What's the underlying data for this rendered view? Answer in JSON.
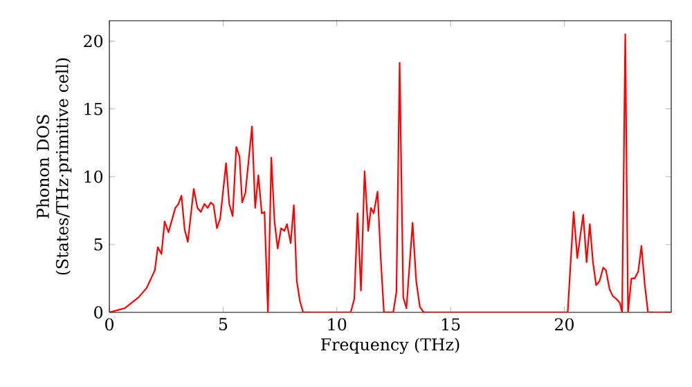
{
  "chart_data": {
    "type": "line",
    "xlabel": "Frequency (THz)",
    "ylabel": "Phonon DOS (States/THz·primitive cell)",
    "color": "#ff0000",
    "x": [
      0,
      0.67,
      1.28,
      1.64,
      2.0,
      2.13,
      2.29,
      2.43,
      2.6,
      2.9,
      3.04,
      3.17,
      3.31,
      3.45,
      3.71,
      3.87,
      4.02,
      4.18,
      4.32,
      4.46,
      4.58,
      4.73,
      4.87,
      5.13,
      5.27,
      5.42,
      5.58,
      5.72,
      5.84,
      5.98,
      6.27,
      6.41,
      6.55,
      6.7,
      6.82,
      6.97,
      7.12,
      7.26,
      7.4,
      7.55,
      7.69,
      7.81,
      7.97,
      8.11,
      8.24,
      8.38,
      8.52,
      10.61,
      10.77,
      10.91,
      11.06,
      11.22,
      11.38,
      11.5,
      11.62,
      11.79,
      11.93,
      12.07,
      12.48,
      12.62,
      12.76,
      12.92,
      13.06,
      13.33,
      13.49,
      13.65,
      13.82,
      20.15,
      20.24,
      20.41,
      20.57,
      20.83,
      20.98,
      21.12,
      21.26,
      21.4,
      21.55,
      21.71,
      21.83,
      21.99,
      22.13,
      22.28,
      22.44,
      22.54,
      22.68,
      22.8,
      22.95,
      23.09,
      23.25,
      23.39,
      23.54,
      23.68,
      24.7
    ],
    "values": [
      0,
      0.3,
      1.1,
      1.8,
      3.1,
      4.8,
      4.3,
      6.7,
      5.9,
      7.7,
      8.0,
      8.6,
      6.1,
      5.2,
      9.1,
      7.7,
      7.4,
      8.0,
      7.7,
      8.1,
      7.9,
      6.2,
      6.9,
      11.0,
      8.0,
      7.1,
      12.2,
      11.5,
      8.1,
      8.8,
      13.7,
      7.7,
      10.1,
      7.3,
      7.4,
      0,
      11.4,
      6.7,
      4.7,
      6.2,
      6.0,
      6.5,
      5.1,
      7.9,
      2.3,
      0.8,
      0,
      0,
      1.0,
      7.3,
      1.6,
      10.4,
      6.0,
      7.7,
      7.3,
      8.9,
      4.0,
      0,
      0,
      1.5,
      18.4,
      1.1,
      0.3,
      6.6,
      2.3,
      0.4,
      0,
      0,
      2.6,
      7.4,
      4.0,
      7.2,
      3.7,
      6.5,
      3.7,
      2.0,
      2.3,
      3.3,
      3.1,
      1.7,
      1.2,
      1.0,
      0.7,
      0,
      20.5,
      0,
      2.5,
      2.5,
      3.0,
      4.9,
      2.0,
      0,
      0
    ],
    "xlim": [
      0,
      24.7
    ],
    "ylim": [
      0,
      21.5
    ],
    "xticks": [
      0,
      5,
      10,
      15,
      20
    ],
    "yticks": [
      0,
      5,
      10,
      15,
      20
    ]
  }
}
